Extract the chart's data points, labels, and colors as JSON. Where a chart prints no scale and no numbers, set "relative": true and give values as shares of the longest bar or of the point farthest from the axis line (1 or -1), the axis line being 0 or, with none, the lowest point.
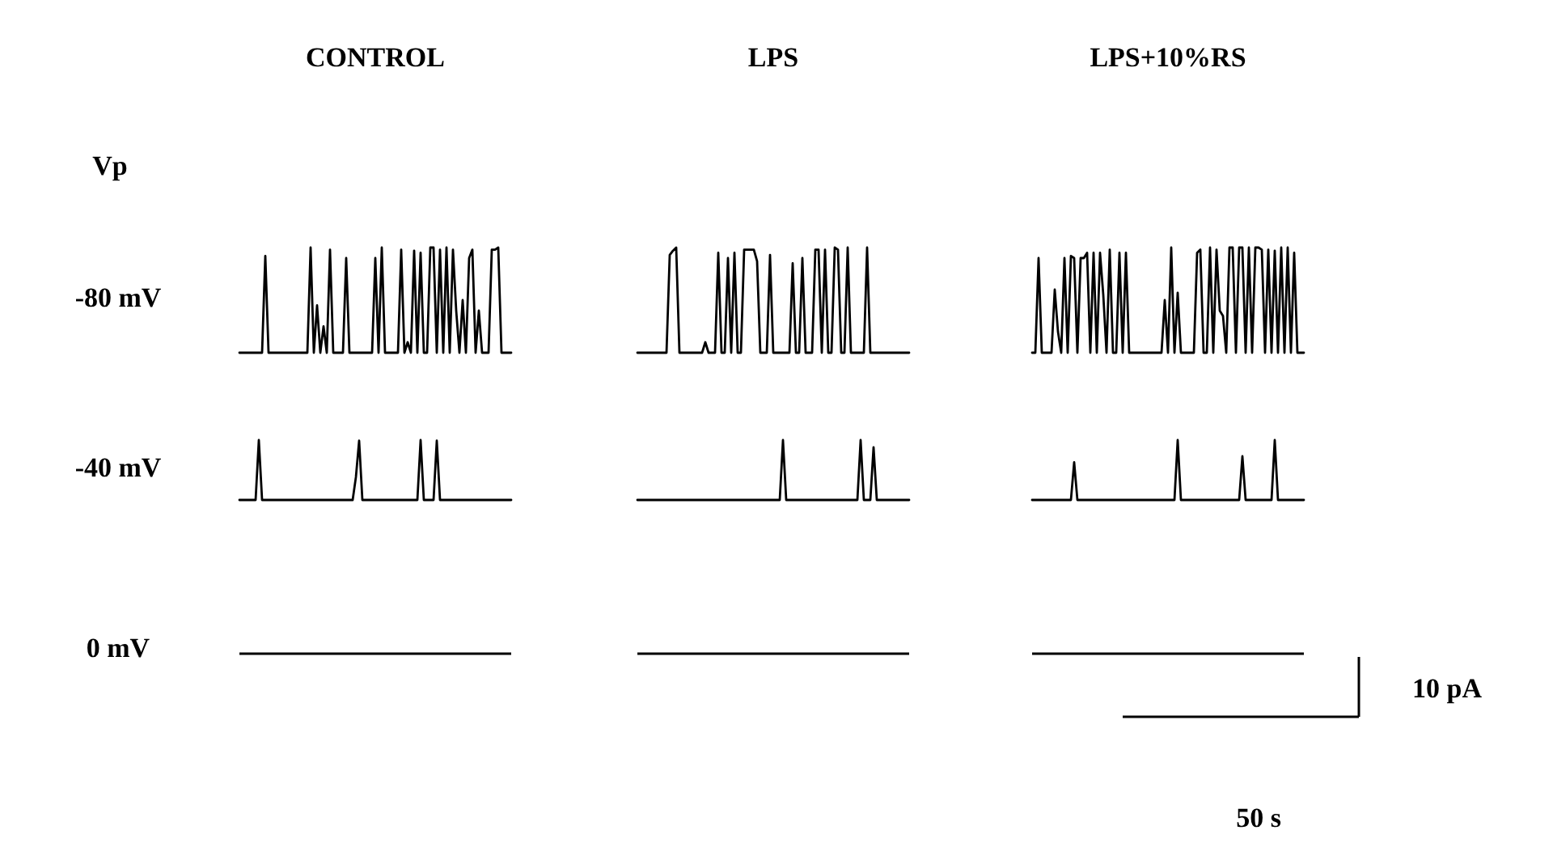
{
  "chart_data": [
    {
      "type": "line",
      "relative": true,
      "title": "CONTROL",
      "ylabel": "-80 mV",
      "annotations": [
        "Vp"
      ],
      "color": "#000000",
      "categories": [
        null,
        null,
        null,
        null,
        null,
        null,
        null,
        null,
        null,
        null,
        null,
        null,
        null,
        null,
        null,
        null,
        null,
        null,
        null,
        null,
        null,
        null,
        null,
        null,
        null,
        null,
        null,
        null,
        null,
        null,
        null,
        null,
        null,
        null,
        null,
        null,
        null,
        null,
        null,
        null,
        null,
        null,
        null,
        null,
        null,
        null,
        null,
        null,
        null,
        null,
        null,
        null,
        null,
        null,
        null,
        null,
        null,
        null,
        null,
        null,
        null,
        null,
        null,
        null,
        null,
        null,
        null,
        null,
        null,
        null,
        null,
        null,
        null,
        null,
        null,
        null,
        null,
        null,
        null,
        null,
        null,
        null,
        null,
        null,
        null
      ],
      "values": [
        0,
        0,
        0,
        0,
        0,
        0,
        0,
        0,
        0.92,
        0,
        0,
        0,
        0,
        0,
        0,
        0,
        0,
        0,
        0,
        0,
        0,
        0,
        1,
        0,
        0.45,
        0,
        0.25,
        0,
        0.98,
        0,
        0,
        0,
        0,
        0.9,
        0,
        0,
        0,
        0,
        0,
        0,
        0,
        0,
        0.9,
        0,
        1,
        0,
        0,
        0,
        0,
        0,
        0.98,
        0,
        0.1,
        0,
        0.97,
        0,
        0.95,
        0,
        0,
        1,
        1,
        0,
        0.98,
        0,
        1,
        0,
        0.98,
        0.4,
        0,
        0.5,
        0,
        0.9,
        0.98,
        0,
        0.4,
        0,
        0,
        0,
        0.98,
        0.98,
        1,
        0,
        0,
        0,
        0
      ]
    },
    {
      "type": "line",
      "relative": true,
      "title": "LPS",
      "color": "#000000",
      "categories": [
        null,
        null,
        null,
        null,
        null,
        null,
        null,
        null,
        null,
        null,
        null,
        null,
        null,
        null,
        null,
        null,
        null,
        null,
        null,
        null,
        null,
        null,
        null,
        null,
        null,
        null,
        null,
        null,
        null,
        null,
        null,
        null,
        null,
        null,
        null,
        null,
        null,
        null,
        null,
        null,
        null,
        null,
        null,
        null,
        null,
        null,
        null,
        null,
        null,
        null,
        null,
        null,
        null,
        null,
        null,
        null,
        null,
        null,
        null,
        null,
        null,
        null,
        null,
        null,
        null,
        null,
        null,
        null,
        null,
        null,
        null,
        null,
        null,
        null,
        null,
        null,
        null,
        null,
        null,
        null,
        null,
        null,
        null,
        null,
        null
      ],
      "values": [
        0,
        0,
        0,
        0,
        0,
        0,
        0,
        0,
        0,
        0,
        0.93,
        0.97,
        1,
        0,
        0,
        0,
        0,
        0,
        0,
        0,
        0,
        0.1,
        0,
        0,
        0,
        0.95,
        0,
        0,
        0.9,
        0,
        0.95,
        0,
        0,
        0.98,
        0.98,
        0.98,
        0.98,
        0.87,
        0,
        0,
        0,
        0.93,
        0,
        0,
        0,
        0,
        0,
        0,
        0.85,
        0,
        0,
        0.9,
        0,
        0,
        0,
        0.98,
        0.98,
        0,
        0.98,
        0,
        0,
        1,
        0.98,
        0,
        0,
        1,
        0,
        0,
        0,
        0,
        0,
        1,
        0,
        0,
        0,
        0,
        0,
        0,
        0,
        0,
        0,
        0,
        0,
        0,
        0
      ]
    },
    {
      "type": "line",
      "relative": true,
      "title": "LPS+10%RS",
      "color": "#000000",
      "categories": [
        null,
        null,
        null,
        null,
        null,
        null,
        null,
        null,
        null,
        null,
        null,
        null,
        null,
        null,
        null,
        null,
        null,
        null,
        null,
        null,
        null,
        null,
        null,
        null,
        null,
        null,
        null,
        null,
        null,
        null,
        null,
        null,
        null,
        null,
        null,
        null,
        null,
        null,
        null,
        null,
        null,
        null,
        null,
        null,
        null,
        null,
        null,
        null,
        null,
        null,
        null,
        null,
        null,
        null,
        null,
        null,
        null,
        null,
        null,
        null,
        null,
        null,
        null,
        null,
        null,
        null,
        null,
        null,
        null,
        null,
        null,
        null,
        null,
        null,
        null,
        null,
        null,
        null,
        null,
        null,
        null,
        null,
        null,
        null,
        null
      ],
      "values": [
        0,
        0,
        0.9,
        0,
        0,
        0,
        0,
        0.6,
        0.2,
        0,
        0.9,
        0,
        0.92,
        0.9,
        0,
        0.9,
        0.9,
        0.95,
        0,
        0.95,
        0,
        0.95,
        0.55,
        0,
        0.98,
        0,
        0,
        0.95,
        0,
        0.95,
        0,
        0,
        0,
        0,
        0,
        0,
        0,
        0,
        0,
        0,
        0,
        0.5,
        0,
        1,
        0,
        0.57,
        0,
        0,
        0,
        0,
        0,
        0.95,
        0.98,
        0,
        0,
        1,
        0,
        0.98,
        0.4,
        0.35,
        0,
        1,
        1,
        0,
        1,
        1,
        0,
        1,
        0,
        1,
        1,
        0.98,
        0,
        0.98,
        0,
        0.97,
        0,
        1,
        0,
        1,
        0,
        0.95,
        0,
        0,
        0
      ]
    },
    {
      "type": "line",
      "relative": true,
      "ylabel": "-40 mV",
      "color": "#000000",
      "categories": [
        null,
        null,
        null,
        null,
        null,
        null,
        null,
        null,
        null,
        null,
        null,
        null,
        null,
        null,
        null,
        null,
        null,
        null,
        null,
        null,
        null,
        null,
        null,
        null,
        null,
        null,
        null,
        null,
        null,
        null,
        null,
        null,
        null,
        null,
        null,
        null,
        null,
        null,
        null,
        null,
        null,
        null,
        null,
        null,
        null,
        null,
        null,
        null,
        null,
        null,
        null,
        null,
        null,
        null,
        null,
        null,
        null,
        null,
        null,
        null,
        null,
        null,
        null,
        null,
        null,
        null,
        null,
        null,
        null,
        null,
        null,
        null,
        null,
        null,
        null,
        null,
        null,
        null,
        null,
        null,
        null,
        null,
        null,
        null,
        null
      ],
      "values": [
        0,
        0,
        0,
        0,
        0,
        0,
        1,
        0,
        0,
        0,
        0,
        0,
        0,
        0,
        0,
        0,
        0,
        0,
        0,
        0,
        0,
        0,
        0,
        0,
        0,
        0,
        0,
        0,
        0,
        0,
        0,
        0,
        0,
        0,
        0,
        0,
        0.38,
        0.99,
        0,
        0,
        0,
        0,
        0,
        0,
        0,
        0,
        0,
        0,
        0,
        0,
        0,
        0,
        0,
        0,
        0,
        0,
        1,
        0,
        0,
        0,
        0,
        0.99,
        0,
        0,
        0,
        0,
        0,
        0,
        0,
        0,
        0,
        0,
        0,
        0,
        0,
        0,
        0,
        0,
        0,
        0,
        0,
        0,
        0,
        0,
        0
      ]
    },
    {
      "type": "line",
      "relative": true,
      "color": "#000000",
      "categories": [
        null,
        null,
        null,
        null,
        null,
        null,
        null,
        null,
        null,
        null,
        null,
        null,
        null,
        null,
        null,
        null,
        null,
        null,
        null,
        null,
        null,
        null,
        null,
        null,
        null,
        null,
        null,
        null,
        null,
        null,
        null,
        null,
        null,
        null,
        null,
        null,
        null,
        null,
        null,
        null,
        null,
        null,
        null,
        null,
        null,
        null,
        null,
        null,
        null,
        null,
        null,
        null,
        null,
        null,
        null,
        null,
        null,
        null,
        null,
        null,
        null,
        null,
        null,
        null,
        null,
        null,
        null,
        null,
        null,
        null,
        null,
        null,
        null,
        null,
        null,
        null,
        null,
        null,
        null,
        null,
        null,
        null,
        null,
        null,
        null
      ],
      "values": [
        0,
        0,
        0,
        0,
        0,
        0,
        0,
        0,
        0,
        0,
        0,
        0,
        0,
        0,
        0,
        0,
        0,
        0,
        0,
        0,
        0,
        0,
        0,
        0,
        0,
        0,
        0,
        0,
        0,
        0,
        0,
        0,
        0,
        0,
        0,
        0,
        0,
        0,
        0,
        0,
        0,
        0,
        0,
        0,
        0,
        1,
        0,
        0,
        0,
        0,
        0,
        0,
        0,
        0,
        0,
        0,
        0,
        0,
        0,
        0,
        0,
        0,
        0,
        0,
        0,
        0,
        0,
        0,
        0,
        1,
        0,
        0,
        0,
        0.88,
        0,
        0,
        0,
        0,
        0,
        0,
        0,
        0,
        0,
        0,
        0
      ]
    },
    {
      "type": "line",
      "relative": true,
      "color": "#000000",
      "categories": [
        null,
        null,
        null,
        null,
        null,
        null,
        null,
        null,
        null,
        null,
        null,
        null,
        null,
        null,
        null,
        null,
        null,
        null,
        null,
        null,
        null,
        null,
        null,
        null,
        null,
        null,
        null,
        null,
        null,
        null,
        null,
        null,
        null,
        null,
        null,
        null,
        null,
        null,
        null,
        null,
        null,
        null,
        null,
        null,
        null,
        null,
        null,
        null,
        null,
        null,
        null,
        null,
        null,
        null,
        null,
        null,
        null,
        null,
        null,
        null,
        null,
        null,
        null,
        null,
        null,
        null,
        null,
        null,
        null,
        null,
        null,
        null,
        null,
        null,
        null,
        null,
        null,
        null,
        null,
        null,
        null,
        null,
        null,
        null,
        null
      ],
      "values": [
        0,
        0,
        0,
        0,
        0,
        0,
        0,
        0,
        0,
        0,
        0,
        0,
        0,
        0.63,
        0,
        0,
        0,
        0,
        0,
        0,
        0,
        0,
        0,
        0,
        0,
        0,
        0,
        0,
        0,
        0,
        0,
        0,
        0,
        0,
        0,
        0,
        0,
        0,
        0,
        0,
        0,
        0,
        0,
        0,
        0,
        1,
        0,
        0,
        0,
        0,
        0,
        0,
        0,
        0,
        0,
        0,
        0,
        0,
        0,
        0,
        0,
        0,
        0,
        0,
        0,
        0.73,
        0,
        0,
        0,
        0,
        0,
        0,
        0,
        0,
        0,
        1,
        0,
        0,
        0,
        0,
        0,
        0,
        0,
        0,
        0
      ]
    },
    {
      "type": "other",
      "ylabel": "0 mV"
    },
    {
      "type": "other",
      "annotations": [
        "10 pA",
        "50 s"
      ]
    }
  ]
}
